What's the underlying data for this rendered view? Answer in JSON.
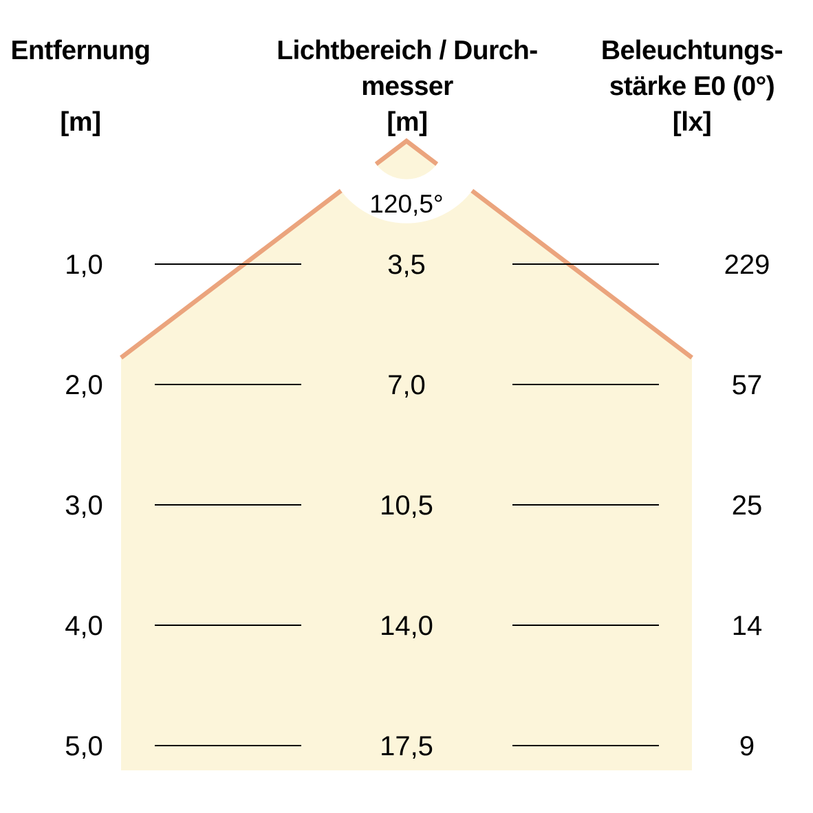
{
  "headers": {
    "distance": {
      "lines": [
        "Entfernung",
        "",
        "[m]"
      ]
    },
    "diameter": {
      "lines": [
        "Lichtbereich / Durch-",
        "messer",
        "[m]"
      ]
    },
    "illuminance": {
      "lines": [
        "Beleuchtungs-",
        "stärke E0 (0°)",
        "[lx]"
      ]
    }
  },
  "beam_angle_label": "120,5°",
  "rows": [
    {
      "distance": "1,0",
      "diameter": "3,5",
      "illuminance": "229"
    },
    {
      "distance": "2,0",
      "diameter": "7,0",
      "illuminance": "57"
    },
    {
      "distance": "3,0",
      "diameter": "10,5",
      "illuminance": "25"
    },
    {
      "distance": "4,0",
      "diameter": "14,0",
      "illuminance": "14"
    },
    {
      "distance": "5,0",
      "diameter": "17,5",
      "illuminance": "9"
    }
  ],
  "chart_data": {
    "type": "table",
    "title": "",
    "columns": [
      "Entfernung [m]",
      "Lichtbereich / Durchmesser [m]",
      "Beleuchtungsstärke E0 (0°) [lx]"
    ],
    "rows": [
      [
        "1,0",
        "3,5",
        "229"
      ],
      [
        "2,0",
        "7,0",
        "57"
      ],
      [
        "3,0",
        "10,5",
        "25"
      ],
      [
        "4,0",
        "14,0",
        "14"
      ],
      [
        "5,0",
        "17,5",
        "9"
      ]
    ],
    "beam_angle_deg": "120,5°"
  },
  "colors": {
    "cone_fill": "#FCF5DA",
    "cone_stroke": "#EBA47D",
    "line_color": "#000000",
    "text_color": "#000000",
    "background": "#FFFFFF"
  }
}
